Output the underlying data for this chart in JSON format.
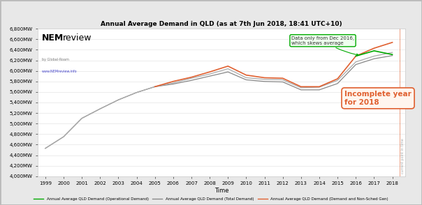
{
  "title": "Annual Average Demand in QLD (as at 7th Jun 2018, 18:41 UTC+10)",
  "xlabel": "Time",
  "ylim": [
    4000,
    6800
  ],
  "yticks": [
    4000,
    4200,
    4400,
    4600,
    4800,
    5000,
    5200,
    5400,
    5600,
    5800,
    6000,
    6200,
    6400,
    6600,
    6800
  ],
  "bg_color": "#ffffff",
  "plot_bg_color": "#ffffff",
  "years_operational": [
    1999,
    2000,
    2001,
    2002,
    2003,
    2004,
    2005,
    2006,
    2007,
    2008,
    2009,
    2010,
    2011,
    2012,
    2013,
    2014,
    2015,
    2016,
    2017,
    2018
  ],
  "values_operational": [
    4530,
    4750,
    5100,
    5280,
    5450,
    5590,
    5700,
    5750,
    5820,
    5900,
    5980,
    5830,
    5800,
    5790,
    5640,
    5640,
    5760,
    6120,
    6230,
    6290
  ],
  "years_total": [
    1999,
    2000,
    2001,
    2002,
    2003,
    2004,
    2005,
    2006,
    2007,
    2008,
    2009,
    2010,
    2011,
    2012,
    2013,
    2014,
    2015,
    2016,
    2017,
    2018
  ],
  "values_total": [
    4530,
    4750,
    5100,
    5280,
    5450,
    5590,
    5700,
    5770,
    5860,
    5940,
    6040,
    5870,
    5840,
    5830,
    5680,
    5690,
    5820,
    6170,
    6280,
    6350
  ],
  "years_orange": [
    2005,
    2006,
    2007,
    2008,
    2009,
    2010,
    2011,
    2012,
    2013,
    2014,
    2015,
    2016,
    2017,
    2018
  ],
  "values_orange": [
    5700,
    5800,
    5880,
    5980,
    6090,
    5920,
    5870,
    5860,
    5700,
    5700,
    5850,
    6280,
    6430,
    6540
  ],
  "years_green": [
    2016,
    2017,
    2018
  ],
  "values_green": [
    6280,
    6380,
    6310
  ],
  "color_gray_dark": "#888888",
  "color_gray_light": "#aaaaaa",
  "color_orange": "#e06030",
  "color_green": "#00aa00",
  "vline_x": 2018.4,
  "vline_color": "#e06030",
  "annotation1_text": "Data only from Dec 2016,\nwhich skews average",
  "annotation2_text": "Incomplete year\nfor 2018",
  "legend_labels": [
    "Annual Average QLD Demand (Operational Demand)",
    "Annual Average QLD Demand (Total Demand)",
    "Annual Average QLD Demand (Demand and Non-Sched Gen)"
  ],
  "legend_colors": [
    "#00aa00",
    "#888888",
    "#e06030"
  ],
  "legend_linestyles": [
    "--",
    "--",
    "-"
  ],
  "outer_bg": "#e8e8e8"
}
